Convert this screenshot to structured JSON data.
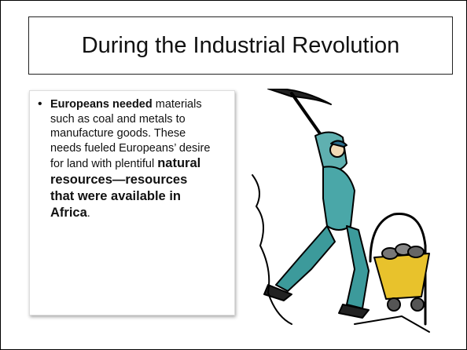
{
  "title": "During the Industrial Revolution",
  "bullet": [
    {
      "text": "Europeans needed",
      "bold": true
    },
    {
      "text": " materials such as coal and metals to manufacture goods. These needs fueled Europeans’ desire for land with plentiful ",
      "bold": false
    },
    {
      "text": "natural resources—resources that were available in Africa",
      "bold": true
    },
    {
      "text": ".",
      "bold": false
    }
  ]
}
